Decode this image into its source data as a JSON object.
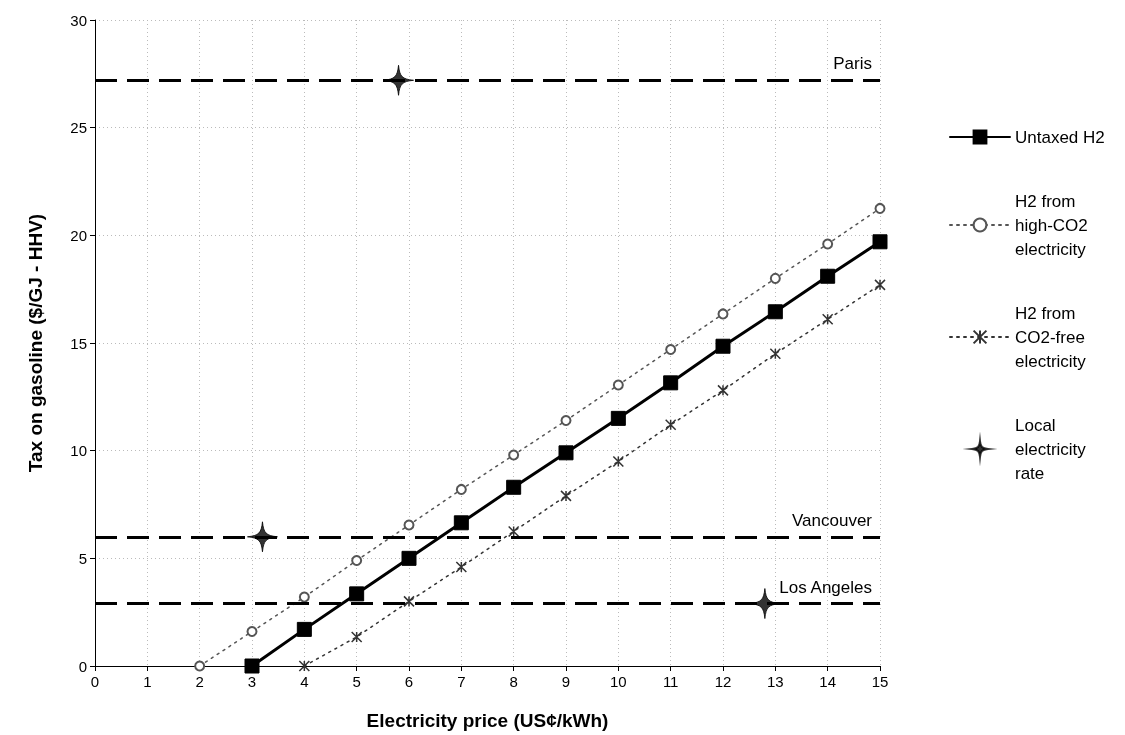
{
  "chart_data": {
    "type": "line",
    "xlabel": "Electricity price (US¢/kWh)",
    "ylabel": "Tax on gasoline ($/GJ - HHV)",
    "xlim": [
      0,
      15
    ],
    "xticks": [
      0,
      1,
      2,
      3,
      4,
      5,
      6,
      7,
      8,
      9,
      10,
      11,
      12,
      13,
      14,
      15
    ],
    "ylim": [
      0,
      30
    ],
    "yticks": [
      0,
      5,
      10,
      15,
      20,
      25,
      30
    ],
    "grid": true,
    "legend": "right",
    "series": [
      {
        "name": "Untaxed H2",
        "color": "#000000",
        "marker": "square",
        "line_style": "solid",
        "x": [
          3,
          4,
          5,
          6,
          7,
          8,
          9,
          10,
          11,
          12,
          13,
          14,
          15
        ],
        "values": [
          0,
          1.7,
          3.35,
          5.0,
          6.65,
          8.3,
          9.9,
          11.5,
          13.15,
          14.85,
          16.45,
          18.1,
          19.7
        ]
      },
      {
        "name": "H2 from high-CO2 electricity",
        "color": "#555555",
        "marker": "circle",
        "line_style": "dotted",
        "x": [
          2,
          3,
          4,
          5,
          6,
          7,
          8,
          9,
          10,
          11,
          12,
          13,
          14,
          15
        ],
        "values": [
          0,
          1.6,
          3.2,
          4.9,
          6.55,
          8.2,
          9.8,
          11.4,
          13.05,
          14.7,
          16.35,
          18.0,
          19.6,
          21.25
        ]
      },
      {
        "name": "H2 from CO2-free electricity",
        "color": "#333333",
        "marker": "cross",
        "line_style": "dotted",
        "x": [
          4,
          5,
          6,
          7,
          8,
          9,
          10,
          11,
          12,
          13,
          14,
          15
        ],
        "values": [
          0,
          1.35,
          3.0,
          4.6,
          6.25,
          7.9,
          9.5,
          11.2,
          12.8,
          14.5,
          16.1,
          17.7
        ]
      },
      {
        "name": "Local electricity rate",
        "type": "scatter",
        "color": "#000000",
        "marker": "star",
        "x": [
          5.8,
          3.2,
          12.8
        ],
        "values": [
          27.2,
          6.0,
          2.9
        ]
      }
    ],
    "ref_lines": [
      {
        "axis": "y",
        "value": 27.2,
        "label": "Paris",
        "color": "#000000",
        "line_style": "dashed"
      },
      {
        "axis": "y",
        "value": 6.0,
        "label": "Vancouver",
        "color": "#000000",
        "line_style": "dashed"
      },
      {
        "axis": "y",
        "value": 2.9,
        "label": "Los Angeles",
        "color": "#000000",
        "line_style": "dashed"
      }
    ]
  }
}
